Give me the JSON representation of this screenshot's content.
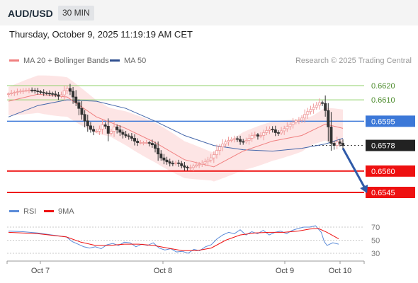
{
  "header": {
    "pair": "AUD/USD",
    "timeframe": "30 MIN"
  },
  "datetime": "Thursday, October 9, 2025 11:19:19 AM CET",
  "legend": {
    "ma20_label": "MA 20 + Bollinger Bands",
    "ma50_label": "MA 50",
    "rsi_label": "RSI",
    "ma9_label": "9MA"
  },
  "credit": "Research © 2025 Trading Central",
  "colors": {
    "resistance": "#8fd06a",
    "pivot": "#3c78d8",
    "support": "#ee1111",
    "current": "#222222",
    "ma20": "#f08080",
    "ma50": "#4466aa",
    "bollinger": "#fde2e2",
    "arrow": "#2f5aa8",
    "bull": "#ef9a9a",
    "bear": "#333333",
    "rsi": "#5b8bd8"
  },
  "chart_data": [
    {
      "type": "line",
      "title": "",
      "x_ticks": [
        "Oct 7",
        "Oct 8",
        "Oct 9",
        "Oct 10"
      ],
      "price_range": [
        0.6538,
        0.6632
      ],
      "levels": [
        {
          "value": 0.662,
          "label": "0.6620",
          "kind": "resistance"
        },
        {
          "value": 0.661,
          "label": "0.6610",
          "kind": "resistance"
        },
        {
          "value": 0.6595,
          "label": "0.6595",
          "kind": "pivot"
        },
        {
          "value": 0.6578,
          "label": "0.6578",
          "kind": "current"
        },
        {
          "value": 0.656,
          "label": "0.6560",
          "kind": "support"
        },
        {
          "value": 0.6545,
          "label": "0.6545",
          "kind": "support"
        }
      ],
      "price_path": [
        [
          0,
          0.6614
        ],
        [
          4,
          0.6616
        ],
        [
          8,
          0.6617
        ],
        [
          12,
          0.6615
        ],
        [
          16,
          0.6614
        ],
        [
          18,
          0.6612
        ],
        [
          20,
          0.6618
        ],
        [
          21,
          0.6618
        ],
        [
          23,
          0.661
        ],
        [
          25,
          0.6602
        ],
        [
          27,
          0.6593
        ],
        [
          29,
          0.6588
        ],
        [
          31,
          0.6588
        ],
        [
          33,
          0.6594
        ],
        [
          35,
          0.6584
        ],
        [
          36,
          0.6592
        ],
        [
          38,
          0.6588
        ],
        [
          40,
          0.6585
        ],
        [
          42,
          0.6584
        ],
        [
          44,
          0.658
        ],
        [
          46,
          0.658
        ],
        [
          48,
          0.658
        ],
        [
          50,
          0.6578
        ],
        [
          52,
          0.657
        ],
        [
          54,
          0.6567
        ],
        [
          56,
          0.6565
        ],
        [
          58,
          0.6566
        ],
        [
          60,
          0.6563
        ],
        [
          62,
          0.6562
        ],
        [
          64,
          0.6564
        ],
        [
          66,
          0.6565
        ],
        [
          68,
          0.6567
        ],
        [
          70,
          0.657
        ],
        [
          72,
          0.6576
        ],
        [
          74,
          0.658
        ],
        [
          76,
          0.6582
        ],
        [
          78,
          0.6583
        ],
        [
          80,
          0.658
        ],
        [
          82,
          0.6582
        ],
        [
          84,
          0.6586
        ],
        [
          86,
          0.6584
        ],
        [
          88,
          0.6588
        ],
        [
          90,
          0.659
        ],
        [
          92,
          0.6586
        ],
        [
          94,
          0.6589
        ],
        [
          96,
          0.6592
        ],
        [
          98,
          0.6595
        ],
        [
          100,
          0.6596
        ],
        [
          102,
          0.6601
        ],
        [
          104,
          0.6604
        ],
        [
          106,
          0.6607
        ],
        [
          107,
          0.6609
        ],
        [
          108,
          0.6606
        ],
        [
          109,
          0.6599
        ],
        [
          110,
          0.6583
        ],
        [
          111,
          0.6576
        ],
        [
          112,
          0.658
        ],
        [
          113,
          0.6581
        ],
        [
          114,
          0.6578
        ]
      ],
      "ma20": [
        [
          0,
          0.6609
        ],
        [
          10,
          0.6614
        ],
        [
          20,
          0.6612
        ],
        [
          30,
          0.6598
        ],
        [
          40,
          0.659
        ],
        [
          50,
          0.658
        ],
        [
          60,
          0.6568
        ],
        [
          70,
          0.6563
        ],
        [
          80,
          0.6574
        ],
        [
          90,
          0.6581
        ],
        [
          100,
          0.6585
        ],
        [
          108,
          0.6593
        ],
        [
          114,
          0.659
        ]
      ],
      "ma50": [
        [
          0,
          0.6598
        ],
        [
          10,
          0.6606
        ],
        [
          20,
          0.661
        ],
        [
          30,
          0.6609
        ],
        [
          40,
          0.6604
        ],
        [
          50,
          0.6595
        ],
        [
          60,
          0.6585
        ],
        [
          70,
          0.6578
        ],
        [
          80,
          0.6575
        ],
        [
          90,
          0.6574
        ],
        [
          100,
          0.6576
        ],
        [
          108,
          0.6579
        ],
        [
          114,
          0.6583
        ]
      ],
      "forecast_arrow": {
        "from": [
          114,
          0.6578
        ],
        "to": [
          122,
          0.6545
        ]
      }
    },
    {
      "type": "line",
      "title": "",
      "y_ticks": [
        70,
        50,
        30
      ],
      "y_range": [
        20,
        80
      ],
      "series": [
        {
          "name": "RSI",
          "values": [
            [
              0,
              64
            ],
            [
              5,
              63
            ],
            [
              10,
              61
            ],
            [
              15,
              58
            ],
            [
              20,
              55
            ],
            [
              22,
              48
            ],
            [
              24,
              44
            ],
            [
              26,
              40
            ],
            [
              28,
              38
            ],
            [
              30,
              40
            ],
            [
              32,
              37
            ],
            [
              34,
              43
            ],
            [
              36,
              45
            ],
            [
              38,
              42
            ],
            [
              40,
              47
            ],
            [
              42,
              46
            ],
            [
              44,
              40
            ],
            [
              46,
              44
            ],
            [
              48,
              42
            ],
            [
              50,
              46
            ],
            [
              52,
              38
            ],
            [
              54,
              35
            ],
            [
              56,
              37
            ],
            [
              58,
              32
            ],
            [
              60,
              33
            ],
            [
              62,
              30
            ],
            [
              64,
              36
            ],
            [
              66,
              34
            ],
            [
              68,
              40
            ],
            [
              70,
              43
            ],
            [
              72,
              52
            ],
            [
              74,
              58
            ],
            [
              76,
              62
            ],
            [
              78,
              60
            ],
            [
              80,
              66
            ],
            [
              82,
              58
            ],
            [
              84,
              63
            ],
            [
              86,
              60
            ],
            [
              88,
              65
            ],
            [
              90,
              58
            ],
            [
              92,
              62
            ],
            [
              94,
              64
            ],
            [
              96,
              60
            ],
            [
              98,
              65
            ],
            [
              100,
              68
            ],
            [
              102,
              70
            ],
            [
              104,
              70
            ],
            [
              106,
              72
            ],
            [
              108,
              62
            ],
            [
              109,
              48
            ],
            [
              110,
              42
            ],
            [
              112,
              46
            ],
            [
              114,
              44
            ]
          ]
        },
        {
          "name": "9MA",
          "values": [
            [
              0,
              62
            ],
            [
              10,
              60
            ],
            [
              20,
              55
            ],
            [
              25,
              47
            ],
            [
              30,
              42
            ],
            [
              35,
              42
            ],
            [
              40,
              44
            ],
            [
              45,
              44
            ],
            [
              50,
              42
            ],
            [
              55,
              38
            ],
            [
              60,
              34
            ],
            [
              65,
              34
            ],
            [
              70,
              38
            ],
            [
              75,
              50
            ],
            [
              80,
              58
            ],
            [
              85,
              61
            ],
            [
              90,
              62
            ],
            [
              95,
              62
            ],
            [
              100,
              64
            ],
            [
              104,
              67
            ],
            [
              107,
              68
            ],
            [
              110,
              62
            ],
            [
              114,
              52
            ]
          ]
        }
      ]
    }
  ]
}
